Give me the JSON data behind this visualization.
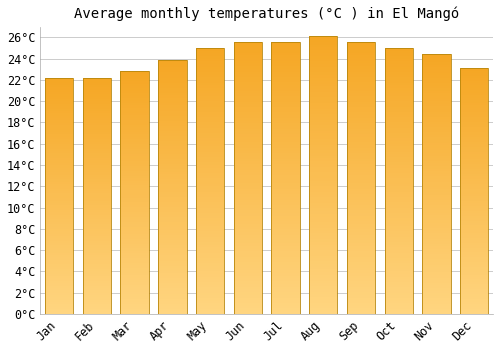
{
  "title": "Average monthly temperatures (°C ) in El Mangó",
  "months": [
    "Jan",
    "Feb",
    "Mar",
    "Apr",
    "May",
    "Jun",
    "Jul",
    "Aug",
    "Sep",
    "Oct",
    "Nov",
    "Dec"
  ],
  "values": [
    22.2,
    22.2,
    22.8,
    23.9,
    25.0,
    25.6,
    25.6,
    26.1,
    25.6,
    25.0,
    24.4,
    23.1
  ],
  "bar_color_top": "#F5A623",
  "bar_color_bottom": "#FFD580",
  "bar_edge_color": "#B8860B",
  "background_color": "#FFFFFF",
  "grid_color": "#CCCCCC",
  "ylim": [
    0,
    27
  ],
  "yticks": [
    0,
    2,
    4,
    6,
    8,
    10,
    12,
    14,
    16,
    18,
    20,
    22,
    24,
    26
  ],
  "title_fontsize": 10,
  "tick_fontsize": 8.5
}
